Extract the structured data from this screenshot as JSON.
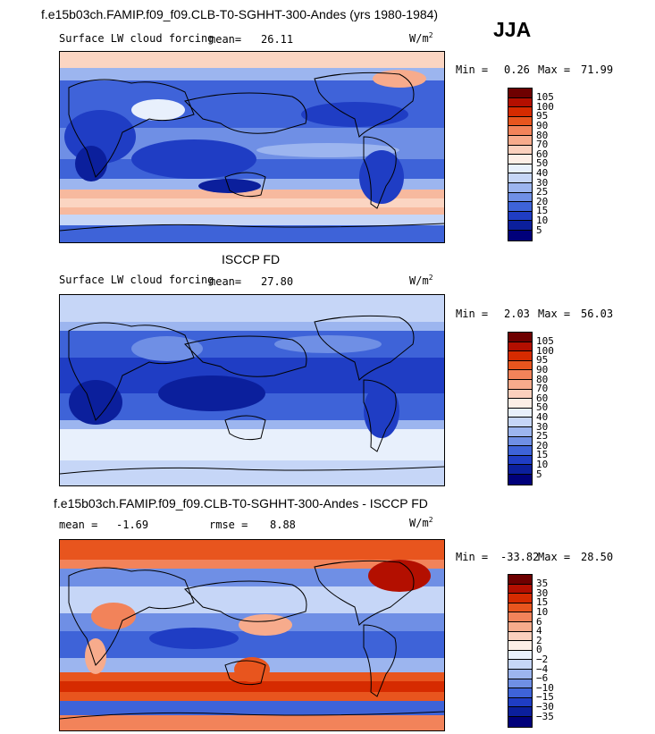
{
  "header": {
    "run_title": "f.e15b03ch.FAMIP.f09_f09.CLB-T0-SGHHT-300-Andes (yrs 1980-1984)",
    "season": "JJA"
  },
  "panels": [
    {
      "variable": "Surface LW cloud forcing",
      "stat_label": "mean=",
      "stat_value": "26.11",
      "units_base": "W/m",
      "units_exp": "2",
      "min_label": "Min =",
      "min_value": "0.26",
      "max_label": "Max =",
      "max_value": "71.99"
    },
    {
      "heading": "ISCCP FD",
      "variable": "Surface LW cloud forcing",
      "stat_label": "mean=",
      "stat_value": "27.80",
      "units_base": "W/m",
      "units_exp": "2",
      "min_label": "Min =",
      "min_value": "2.03",
      "max_label": "Max =",
      "max_value": "56.03"
    },
    {
      "heading": "f.e15b03ch.FAMIP.f09_f09.CLB-T0-SGHHT-300-Andes - ISCCP FD",
      "stat_label": "mean =",
      "stat_value": "-1.69",
      "rmse_label": "rmse =",
      "rmse_value": "8.88",
      "units_base": "W/m",
      "units_exp": "2",
      "min_label": "Min =",
      "min_value": "-33.82",
      "max_label": "Max =",
      "max_value": "28.50"
    }
  ],
  "chart_data": [
    {
      "type": "heatmap",
      "title": "Surface LW cloud forcing (model)",
      "legend_levels": [
        "105",
        "100",
        "95",
        "90",
        "80",
        "70",
        "60",
        "50",
        "40",
        "30",
        "25",
        "20",
        "15",
        "10",
        "5"
      ],
      "legend_colors": [
        "#6e0000",
        "#b30f00",
        "#d62b00",
        "#e8551e",
        "#f2835a",
        "#f7ab8c",
        "#fbd0bd",
        "#fdeee6",
        "#e8f0fc",
        "#c6d6f7",
        "#9cb5ef",
        "#6f8fe5",
        "#3e63d8",
        "#1f3dc4",
        "#0b1f9c",
        "#00007a"
      ],
      "min": 0.26,
      "max": 71.99,
      "mean": 26.11
    },
    {
      "type": "heatmap",
      "title": "Surface LW cloud forcing (ISCCP FD)",
      "legend_levels": [
        "105",
        "100",
        "95",
        "90",
        "80",
        "70",
        "60",
        "50",
        "40",
        "30",
        "25",
        "20",
        "15",
        "10",
        "5"
      ],
      "legend_colors": [
        "#6e0000",
        "#b30f00",
        "#d62b00",
        "#e8551e",
        "#f2835a",
        "#f7ab8c",
        "#fbd0bd",
        "#fdeee6",
        "#e8f0fc",
        "#c6d6f7",
        "#9cb5ef",
        "#6f8fe5",
        "#3e63d8",
        "#1f3dc4",
        "#0b1f9c",
        "#00007a"
      ],
      "min": 2.03,
      "max": 56.03,
      "mean": 27.8
    },
    {
      "type": "heatmap",
      "title": "Model - ISCCP FD difference",
      "legend_levels": [
        "35",
        "30",
        "15",
        "10",
        "6",
        "4",
        "2",
        "0",
        "−2",
        "−4",
        "−6",
        "−10",
        "−15",
        "−30",
        "−35"
      ],
      "legend_colors": [
        "#6e0000",
        "#b30f00",
        "#d62b00",
        "#e8551e",
        "#f2835a",
        "#f7ab8c",
        "#fbd0bd",
        "#fdeee6",
        "#e8f0fc",
        "#c6d6f7",
        "#9cb5ef",
        "#6f8fe5",
        "#3e63d8",
        "#1f3dc4",
        "#0b1f9c",
        "#00007a"
      ],
      "min": -33.82,
      "max": 28.5,
      "mean": -1.69,
      "rmse": 8.88
    }
  ]
}
